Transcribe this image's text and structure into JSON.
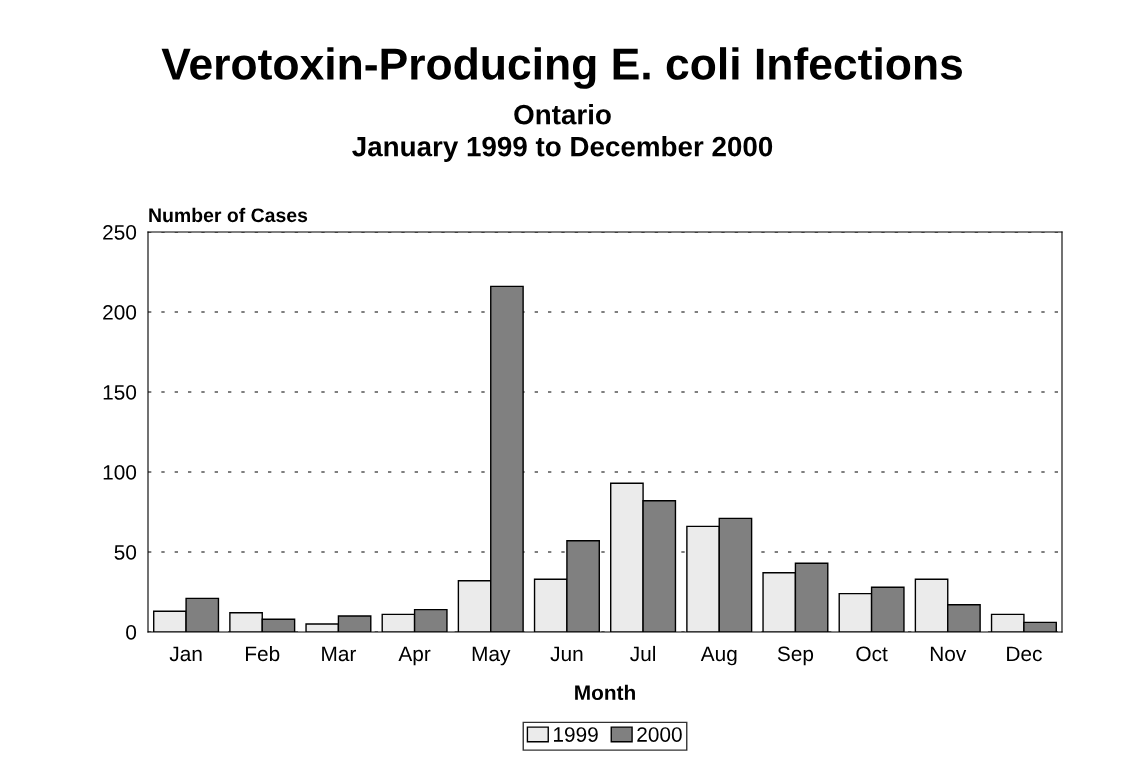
{
  "chart_data": {
    "type": "bar",
    "title": "Verotoxin-Producing E. coli Infections",
    "subtitle": "Ontario\nJanuary 1999 to December 2000",
    "xlabel": "Month",
    "ylabel": "Number of Cases",
    "categories": [
      "Jan",
      "Feb",
      "Mar",
      "Apr",
      "May",
      "Jun",
      "Jul",
      "Aug",
      "Sep",
      "Oct",
      "Nov",
      "Dec"
    ],
    "series": [
      {
        "name": "1999",
        "color": "#ebebeb",
        "values": [
          13,
          12,
          5,
          11,
          32,
          33,
          93,
          66,
          37,
          24,
          33,
          11
        ]
      },
      {
        "name": "2000",
        "color": "#808080",
        "values": [
          21,
          8,
          10,
          14,
          216,
          57,
          82,
          71,
          43,
          28,
          17,
          6
        ]
      }
    ],
    "ylim": [
      0,
      250
    ],
    "yticks": [
      0,
      50,
      100,
      150,
      200,
      250
    ],
    "grid": "y",
    "legend": "bottom"
  }
}
